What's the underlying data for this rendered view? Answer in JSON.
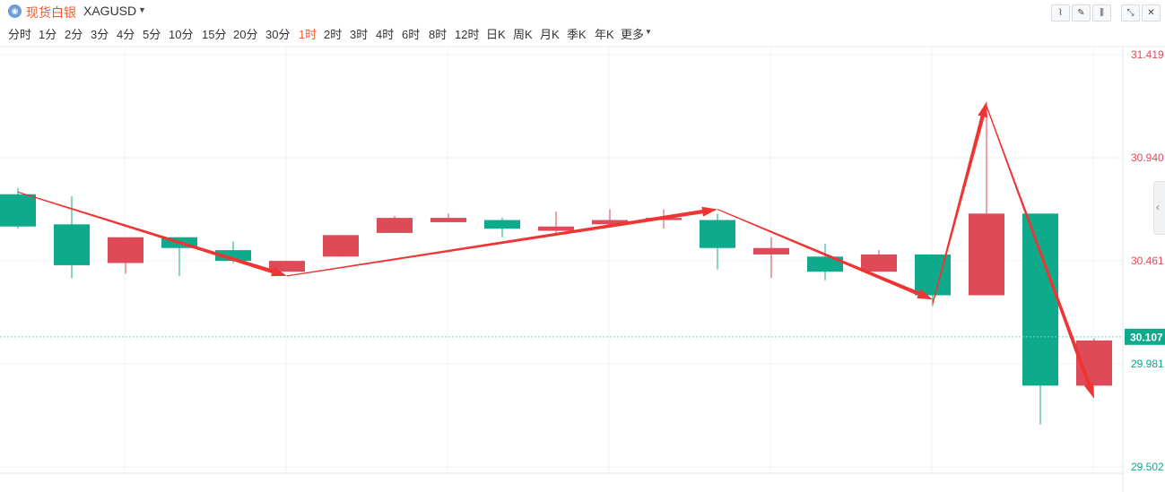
{
  "header": {
    "logo_icon": "silver-coin-icon",
    "title": "现货白银",
    "symbol": "XAGUSD",
    "tools": [
      "line-tool-icon",
      "pen-tool-icon",
      "candle-style-icon",
      "collapse-icon",
      "close-icon"
    ]
  },
  "periods": [
    "分时",
    "1分",
    "2分",
    "3分",
    "4分",
    "5分",
    "10分",
    "15分",
    "20分",
    "30分",
    "1时",
    "2时",
    "3时",
    "4时",
    "6时",
    "8时",
    "12时",
    "日K",
    "周K",
    "月K",
    "季K",
    "年K",
    "更多"
  ],
  "active_period": "1时",
  "colors": {
    "up": "#df4a59",
    "down": "#0fa98b",
    "arrow": "#ef3434",
    "accent": "#ef5b2a",
    "grid": "#eef0f3",
    "current_price_bg": "#0fa98b"
  },
  "chart_data": {
    "type": "candlestick",
    "ylim": [
      29.502,
      31.419
    ],
    "y_ticks": [
      "31.419",
      "30.940",
      "30.461",
      "29.981",
      "29.502"
    ],
    "current_price": "30.107",
    "candles": [
      {
        "open": 30.77,
        "high": 30.8,
        "low": 30.61,
        "close": 30.62
      },
      {
        "open": 30.63,
        "high": 30.76,
        "low": 30.38,
        "close": 30.44
      },
      {
        "open": 30.45,
        "high": 30.57,
        "low": 30.4,
        "close": 30.57
      },
      {
        "open": 30.57,
        "high": 30.57,
        "low": 30.39,
        "close": 30.52
      },
      {
        "open": 30.51,
        "high": 30.55,
        "low": 30.45,
        "close": 30.46
      },
      {
        "open": 30.41,
        "high": 30.46,
        "low": 30.41,
        "close": 30.46
      },
      {
        "open": 30.48,
        "high": 30.58,
        "low": 30.48,
        "close": 30.58
      },
      {
        "open": 30.59,
        "high": 30.67,
        "low": 30.59,
        "close": 30.66
      },
      {
        "open": 30.64,
        "high": 30.68,
        "low": 30.64,
        "close": 30.66
      },
      {
        "open": 30.65,
        "high": 30.66,
        "low": 30.57,
        "close": 30.61
      },
      {
        "open": 30.6,
        "high": 30.69,
        "low": 30.59,
        "close": 30.62
      },
      {
        "open": 30.63,
        "high": 30.7,
        "low": 30.63,
        "close": 30.65
      },
      {
        "open": 30.65,
        "high": 30.7,
        "low": 30.61,
        "close": 30.66
      },
      {
        "open": 30.65,
        "high": 30.68,
        "low": 30.42,
        "close": 30.52
      },
      {
        "open": 30.49,
        "high": 30.57,
        "low": 30.38,
        "close": 30.52
      },
      {
        "open": 30.48,
        "high": 30.54,
        "low": 30.37,
        "close": 30.41
      },
      {
        "open": 30.41,
        "high": 30.51,
        "low": 30.41,
        "close": 30.49
      },
      {
        "open": 30.49,
        "high": 30.49,
        "low": 30.25,
        "close": 30.3
      },
      {
        "open": 30.3,
        "high": 31.2,
        "low": 30.3,
        "close": 30.68
      },
      {
        "open": 30.68,
        "high": 30.68,
        "low": 29.7,
        "close": 29.88
      },
      {
        "open": 29.88,
        "high": 30.1,
        "low": 29.88,
        "close": 30.09
      }
    ],
    "trend_arrows": [
      {
        "from": [
          0,
          30.78
        ],
        "to": [
          5,
          30.39
        ]
      },
      {
        "from": [
          5,
          30.39
        ],
        "to": [
          13,
          30.7
        ]
      },
      {
        "from": [
          13,
          30.7
        ],
        "to": [
          17,
          30.28
        ]
      },
      {
        "from": [
          17,
          30.26
        ],
        "to": [
          18,
          31.2
        ]
      },
      {
        "from": [
          18,
          31.18
        ],
        "to": [
          20,
          29.82
        ]
      }
    ]
  }
}
